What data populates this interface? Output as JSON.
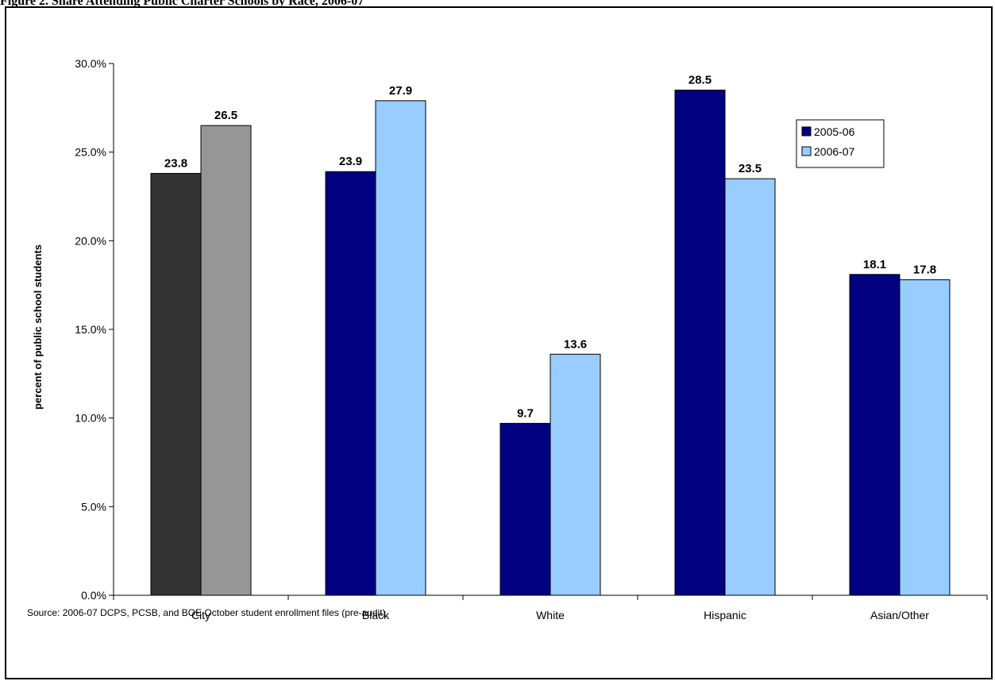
{
  "figure_title": "Figure 2. Share Attending Public Charter Schools by Race, 2006-07",
  "source": "Source: 2006-07 DCPS, PCSB, and BOE October student enrollment files (pre-audit)",
  "chart_data": {
    "type": "bar",
    "title": "",
    "xlabel": "",
    "ylabel": "percent of public school students",
    "ylim": [
      0,
      30
    ],
    "yticks": [
      "0.0%",
      "5.0%",
      "10.0%",
      "15.0%",
      "20.0%",
      "25.0%",
      "30.0%"
    ],
    "categories": [
      "City",
      "Black",
      "White",
      "Hispanic",
      "Asian/Other"
    ],
    "series": [
      {
        "name": "2005-06",
        "values": [
          23.8,
          23.9,
          9.7,
          28.5,
          18.1
        ],
        "labels": [
          "23.8",
          "23.9",
          "9.7",
          "28.5",
          "18.1"
        ],
        "color": "#000080",
        "city_color": "#333333"
      },
      {
        "name": "2006-07",
        "values": [
          26.5,
          27.9,
          13.6,
          23.5,
          17.8
        ],
        "labels": [
          "26.5",
          "27.9",
          "13.6",
          "23.5",
          "17.8"
        ],
        "color": "#99ccff",
        "city_color": "#969696"
      }
    ],
    "grid": false,
    "legend_position": "top-right"
  }
}
